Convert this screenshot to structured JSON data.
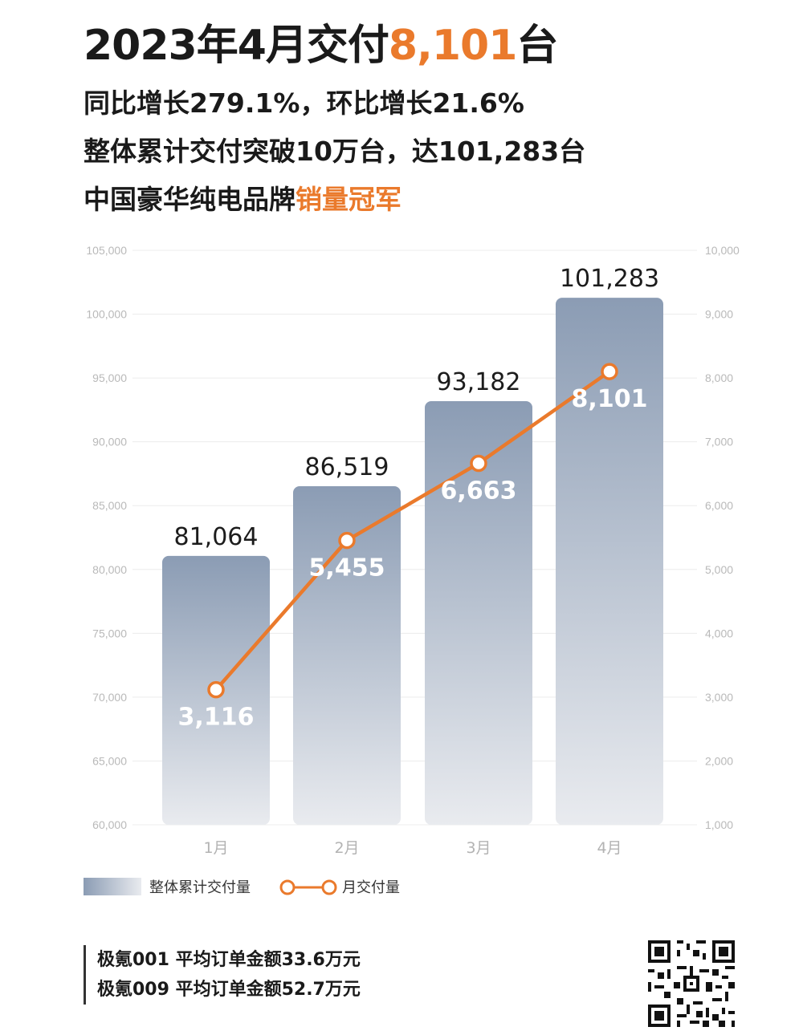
{
  "header": {
    "title_prefix": "2023年4月交付",
    "title_highlight": "8,101",
    "title_suffix": "台",
    "line1": "同比增长279.1%，环比增长21.6%",
    "line2": "整体累计交付突破10万台，达101,283台",
    "line3_prefix": "中国豪华纯电品牌",
    "line3_highlight": "销量冠军"
  },
  "colors": {
    "accent": "#ea7a2c",
    "bar_top": "#8b9cb4",
    "bar_bottom": "#e9ebef"
  },
  "chart_data": {
    "type": "bar",
    "categories": [
      "1月",
      "2月",
      "3月",
      "4月"
    ],
    "series": [
      {
        "name": "整体累计交付量",
        "type": "bar",
        "axis": "left",
        "values": [
          81064,
          86519,
          93182,
          101283
        ],
        "labels": [
          "81,064",
          "86,519",
          "93,182",
          "101,283"
        ]
      },
      {
        "name": "月交付量",
        "type": "line",
        "axis": "right",
        "values": [
          3116,
          5455,
          6663,
          8101
        ],
        "labels": [
          "3,116",
          "5,455",
          "6,663",
          "8,101"
        ]
      }
    ],
    "ylim_left": [
      60000,
      105000
    ],
    "ylim_right": [
      1000,
      10000
    ],
    "left_ticks": [
      "60,000",
      "65,000",
      "70,000",
      "75,000",
      "80,000",
      "85,000",
      "90,000",
      "95,000",
      "100,000",
      "105,000"
    ],
    "right_ticks": [
      "1,000",
      "2,000",
      "3,000",
      "4,000",
      "5,000",
      "6,000",
      "7,000",
      "8,000",
      "9,000",
      "10,000"
    ],
    "grid": true,
    "legend": "bottom-left"
  },
  "legend": {
    "bar_label": "整体累计交付量",
    "line_label": "月交付量"
  },
  "footnotes": [
    "极氪001 平均订单金额33.6万元",
    "极氪009 平均订单金额52.7万元"
  ],
  "qr_icon": "qr-code-icon"
}
